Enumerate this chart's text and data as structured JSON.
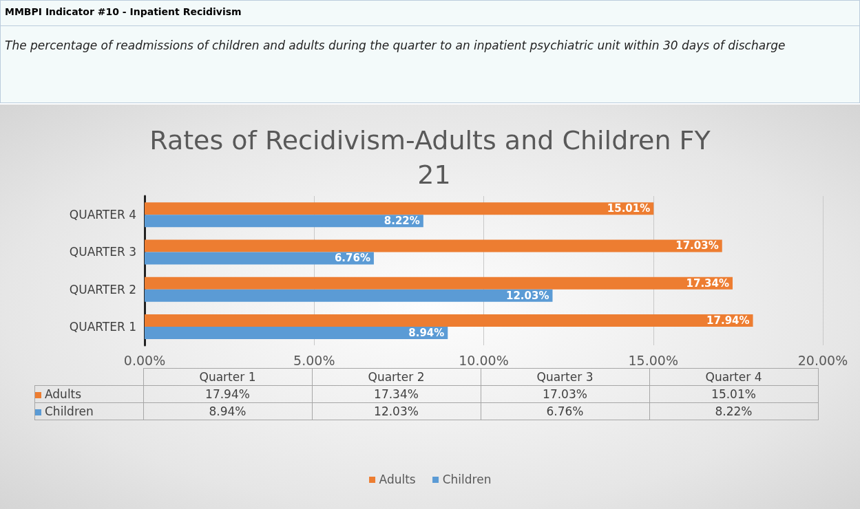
{
  "chart_data": {
    "type": "bar",
    "orientation": "horizontal",
    "title": "Rates of Recidivism-Adults and Children FY 21",
    "subtitle": "The percentage of readmissions of children and adults during the quarter to an inpatient psychiatric unit within 30 days of discharge",
    "annotations": [
      "MMBPI Indicator #10 - Inpatient Recidivism",
      "Quarter 1",
      "Quarter 2",
      "Quarter 3",
      "Quarter 4"
    ],
    "categories": [
      "QUARTER 4",
      "QUARTER 3",
      "QUARTER 2",
      "QUARTER 1"
    ],
    "series": [
      {
        "name": "Adults",
        "color": "#ed7d31",
        "values": [
          15.01,
          17.03,
          17.34,
          17.94
        ],
        "value_labels": [
          "15.01%",
          "17.03%",
          "17.34%",
          "17.94%"
        ]
      },
      {
        "name": "Children",
        "color": "#5b9bd5",
        "values": [
          8.22,
          6.76,
          12.03,
          8.94
        ],
        "value_labels": [
          "8.22%",
          "6.76%",
          "12.03%",
          "8.94%"
        ]
      }
    ],
    "xlim": [
      0,
      20
    ],
    "xticks": [
      {
        "value": 0,
        "label": "0.00%"
      },
      {
        "value": 5,
        "label": "5.00%"
      },
      {
        "value": 10,
        "label": "10.00%"
      },
      {
        "value": 15,
        "label": "15.00%"
      },
      {
        "value": 20,
        "label": "20.00%"
      }
    ],
    "grid": "x",
    "legend": "bottom"
  }
}
